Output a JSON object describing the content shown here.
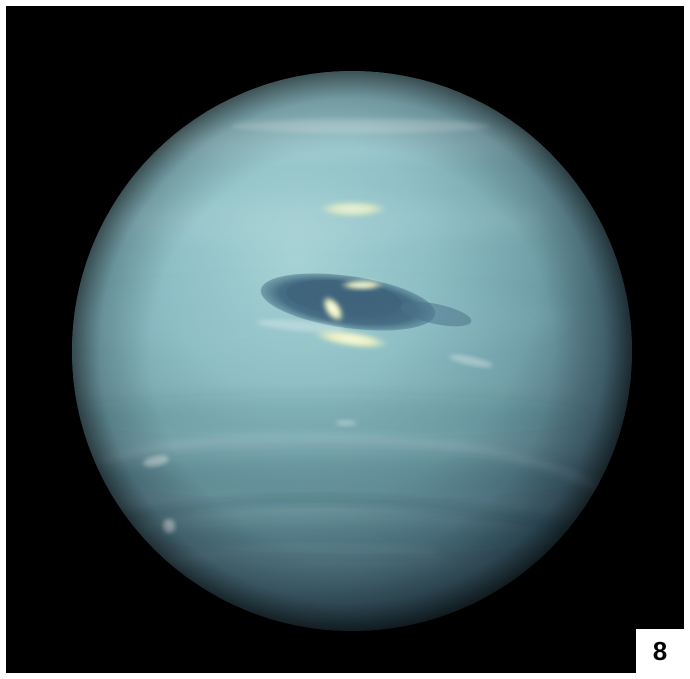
{
  "badge": {
    "number": "8"
  },
  "colors": {
    "border": "#ffffff",
    "space": "#000000",
    "planet_light": "#8fc4c8",
    "planet_mid": "#6e9ea8",
    "planet_dark": "#2b4a57",
    "spot_dark": "#43667a",
    "cloud_bright": "#f6f7c9",
    "badge_bg": "#ffffff",
    "badge_text": "#000000"
  },
  "scene": {
    "subject": "planet-icon",
    "features": [
      "great-dark-spot-icon",
      "bright-cloud-icon",
      "cloud-band-icon"
    ]
  }
}
